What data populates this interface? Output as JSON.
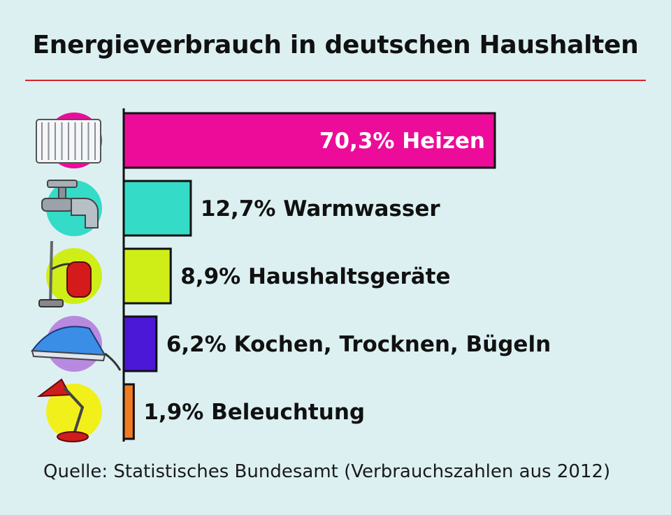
{
  "title": "Energieverbrauch in deutschen Haushalten",
  "source": "Quelle: Statistisches Bundesamt (Verbrauchszahlen aus 2012)",
  "colors": {
    "background": "#dcf0f2",
    "title_rule": "#d8232a",
    "axis": "#111111"
  },
  "chart_data": {
    "type": "bar",
    "orientation": "horizontal",
    "categories": [
      "Heizen",
      "Warmwasser",
      "Haushaltsgeräte",
      "Kochen, Trocknen, Bügeln",
      "Beleuchtung"
    ],
    "values": [
      70.3,
      12.7,
      8.9,
      6.2,
      1.9
    ],
    "labels": [
      "70,3% Heizen",
      "12,7% Warmwasser",
      "8,9% Haushaltsgeräte",
      "6,2% Kochen, Trocknen, Bügeln",
      "1,9% Beleuchtung"
    ],
    "bar_colors": [
      "#ec0c99",
      "#34dcc8",
      "#cfee18",
      "#4a18d6",
      "#f07b23"
    ],
    "icons": [
      "radiator-icon",
      "faucet-icon",
      "vacuum-cleaner-icon",
      "iron-icon",
      "desk-lamp-icon"
    ],
    "icon_circle_colors": [
      "#ec0c99",
      "#34dcc8",
      "#cfee18",
      "#b88adf",
      "#f2f01a"
    ],
    "unit": "%",
    "xlim": [
      0,
      70.3
    ],
    "grid": false,
    "legend": "none"
  }
}
